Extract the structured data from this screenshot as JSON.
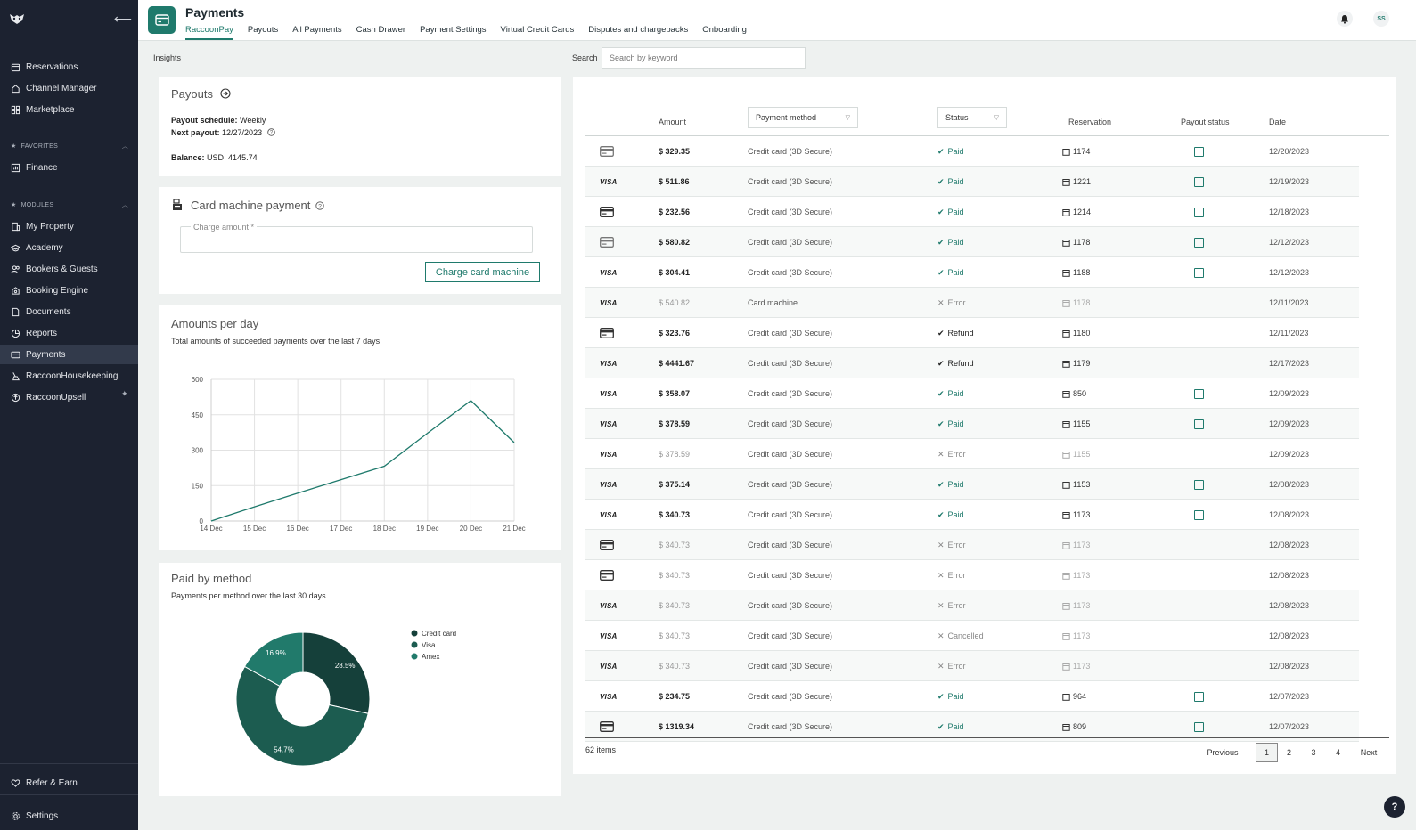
{
  "sidebar": {
    "items_top": [
      "Reservations",
      "Channel Manager",
      "Marketplace"
    ],
    "favorites_label": "FAVORITES",
    "favorites": [
      "Finance"
    ],
    "modules_label": "MODULES",
    "modules": [
      "My Property",
      "Academy",
      "Bookers & Guests",
      "Booking Engine",
      "Documents",
      "Reports",
      "Payments",
      "RaccoonHousekeeping",
      "RaccoonUpsell"
    ],
    "active": "Payments",
    "refer": "Refer & Earn",
    "settings": "Settings"
  },
  "header": {
    "title": "Payments",
    "tabs": [
      "RaccoonPay",
      "Payouts",
      "All Payments",
      "Cash Drawer",
      "Payment Settings",
      "Virtual Credit Cards",
      "Disputes and chargebacks",
      "Onboarding"
    ],
    "active_tab": "RaccoonPay",
    "avatar": "SS"
  },
  "insights_label": "Insights",
  "search": {
    "label": "Search",
    "placeholder": "Search by keyword"
  },
  "payouts": {
    "title": "Payouts",
    "schedule_label": "Payout schedule:",
    "schedule_value": "Weekly",
    "next_label": "Next payout:",
    "next_value": "12/27/2023",
    "balance_label": "Balance:",
    "balance_value": "USD  4145.74"
  },
  "card_machine": {
    "title": "Card machine payment",
    "charge_label": "Charge amount *",
    "button": "Charge card machine"
  },
  "amounts_per_day": {
    "title": "Amounts per day",
    "subtitle": "Total amounts of succeeded payments over the last 7 days"
  },
  "paid_by_method": {
    "title": "Paid by method",
    "subtitle": "Payments per method over the last 30 days"
  },
  "chart_data": [
    {
      "type": "line",
      "x": [
        "14 Dec",
        "15 Dec",
        "16 Dec",
        "17 Dec",
        "18 Dec",
        "19 Dec",
        "20 Dec",
        "21 Dec"
      ],
      "values": [
        0,
        60,
        118,
        175,
        232,
        372,
        510,
        332
      ],
      "yticks": [
        0,
        150,
        300,
        450,
        600
      ],
      "ylim": [
        0,
        600
      ],
      "color": "#1f7a6c",
      "grid": true
    },
    {
      "type": "pie",
      "donut": true,
      "labels": [
        "Credit card",
        "Visa",
        "Amex"
      ],
      "values": [
        28.5,
        54.7,
        16.9
      ],
      "value_labels": [
        "28.5%",
        "54.7%",
        "16.9%"
      ],
      "colors": [
        "#15403a",
        "#1c5c50",
        "#217a6b"
      ],
      "legend": "right"
    }
  ],
  "table": {
    "headers": {
      "amount": "Amount",
      "method": "Payment method",
      "status": "Status",
      "reservation": "Reservation",
      "payout": "Payout status",
      "date": "Date"
    },
    "rows": [
      {
        "card": "card-grey",
        "amount": "$ 329.35",
        "method": "Credit card (3D Secure)",
        "status": "Paid",
        "res": "1174",
        "payout": true,
        "date": "12/20/2023"
      },
      {
        "card": "visa",
        "amount": "$ 511.86",
        "method": "Credit card (3D Secure)",
        "status": "Paid",
        "res": "1221",
        "payout": true,
        "date": "12/19/2023"
      },
      {
        "card": "card",
        "amount": "$ 232.56",
        "method": "Credit card (3D Secure)",
        "status": "Paid",
        "res": "1214",
        "payout": true,
        "date": "12/18/2023"
      },
      {
        "card": "card-grey",
        "amount": "$ 580.82",
        "method": "Credit card (3D Secure)",
        "status": "Paid",
        "res": "1178",
        "payout": true,
        "date": "12/12/2023"
      },
      {
        "card": "visa",
        "amount": "$ 304.41",
        "method": "Credit card (3D Secure)",
        "status": "Paid",
        "res": "1188",
        "payout": true,
        "date": "12/12/2023"
      },
      {
        "card": "visa",
        "amount": "$ 540.82",
        "method": "Card machine",
        "status": "Error",
        "res": "1178",
        "payout": false,
        "date": "12/11/2023"
      },
      {
        "card": "card",
        "amount": "$ 323.76",
        "method": "Credit card (3D Secure)",
        "status": "Refund",
        "res": "1180",
        "payout": false,
        "date": "12/11/2023"
      },
      {
        "card": "visa",
        "amount": "$ 4441.67",
        "method": "Credit card (3D Secure)",
        "status": "Refund",
        "res": "1179",
        "payout": false,
        "date": "12/17/2023"
      },
      {
        "card": "visa",
        "amount": "$ 358.07",
        "method": "Credit card (3D Secure)",
        "status": "Paid",
        "res": "850",
        "payout": true,
        "date": "12/09/2023"
      },
      {
        "card": "visa",
        "amount": "$ 378.59",
        "method": "Credit card (3D Secure)",
        "status": "Paid",
        "res": "1155",
        "payout": true,
        "date": "12/09/2023"
      },
      {
        "card": "visa",
        "amount": "$ 378.59",
        "method": "Credit card (3D Secure)",
        "status": "Error",
        "res": "1155",
        "payout": false,
        "date": "12/09/2023"
      },
      {
        "card": "visa",
        "amount": "$ 375.14",
        "method": "Credit card (3D Secure)",
        "status": "Paid",
        "res": "1153",
        "payout": true,
        "date": "12/08/2023"
      },
      {
        "card": "visa",
        "amount": "$ 340.73",
        "method": "Credit card (3D Secure)",
        "status": "Paid",
        "res": "1173",
        "payout": true,
        "date": "12/08/2023"
      },
      {
        "card": "card",
        "amount": "$ 340.73",
        "method": "Credit card (3D Secure)",
        "status": "Error",
        "res": "1173",
        "payout": false,
        "date": "12/08/2023"
      },
      {
        "card": "card",
        "amount": "$ 340.73",
        "method": "Credit card (3D Secure)",
        "status": "Error",
        "res": "1173",
        "payout": false,
        "date": "12/08/2023"
      },
      {
        "card": "visa",
        "amount": "$ 340.73",
        "method": "Credit card (3D Secure)",
        "status": "Error",
        "res": "1173",
        "payout": false,
        "date": "12/08/2023"
      },
      {
        "card": "visa",
        "amount": "$ 340.73",
        "method": "Credit card (3D Secure)",
        "status": "Cancelled",
        "res": "1173",
        "payout": false,
        "date": "12/08/2023"
      },
      {
        "card": "visa",
        "amount": "$ 340.73",
        "method": "Credit card (3D Secure)",
        "status": "Error",
        "res": "1173",
        "payout": false,
        "date": "12/08/2023"
      },
      {
        "card": "visa",
        "amount": "$ 234.75",
        "method": "Credit card (3D Secure)",
        "status": "Paid",
        "res": "964",
        "payout": true,
        "date": "12/07/2023"
      },
      {
        "card": "card",
        "amount": "$ 1319.34",
        "method": "Credit card (3D Secure)",
        "status": "Paid",
        "res": "809",
        "payout": true,
        "date": "12/07/2023"
      }
    ],
    "items_count": "62 items",
    "pagination": {
      "previous": "Previous",
      "pages": [
        "1",
        "2",
        "3",
        "4"
      ],
      "current": "1",
      "next": "Next"
    },
    "visa_text": "VISA"
  },
  "help": "?"
}
